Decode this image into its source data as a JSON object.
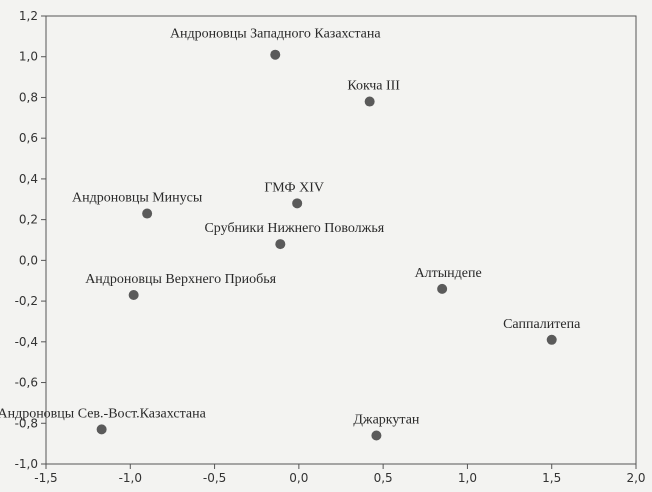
{
  "chart_data": {
    "type": "scatter",
    "title": "",
    "xlabel": "",
    "ylabel": "",
    "xlim": [
      -1.5,
      2.0
    ],
    "ylim": [
      -1.0,
      1.2
    ],
    "grid": false,
    "xticks": [
      "-1,5",
      "-1,0",
      "-0,5",
      "0,0",
      "0,5",
      "1,0",
      "1,5",
      "2,0"
    ],
    "yticks": [
      "1,2",
      "1,0",
      "0,8",
      "0,6",
      "0,4",
      "0,2",
      "0,0",
      "-0,2",
      "-0,4",
      "-0,6",
      "-0,8",
      "-1,0"
    ],
    "points": [
      {
        "label": "Андроновцы Западного Казахстана",
        "x": -0.14,
        "y": 1.01
      },
      {
        "label": "Кокча III",
        "x": 0.42,
        "y": 0.78
      },
      {
        "label": "ГМФ XIV",
        "x": -0.01,
        "y": 0.28
      },
      {
        "label": "Андроновцы Минусы",
        "x": -0.9,
        "y": 0.23
      },
      {
        "label": "Срубники Нижнего Поволжья",
        "x": -0.11,
        "y": 0.08
      },
      {
        "label": "Андроновцы Верхнего Приобья",
        "x": -0.98,
        "y": -0.17
      },
      {
        "label": "Алтындепе",
        "x": 0.85,
        "y": -0.14
      },
      {
        "label": "Саппалитепа",
        "x": 1.5,
        "y": -0.39
      },
      {
        "label": "Андроновцы Сев.-Вост.Казахстана",
        "x": -1.17,
        "y": -0.83
      },
      {
        "label": "Джаркутан",
        "x": 0.46,
        "y": -0.86
      }
    ]
  }
}
